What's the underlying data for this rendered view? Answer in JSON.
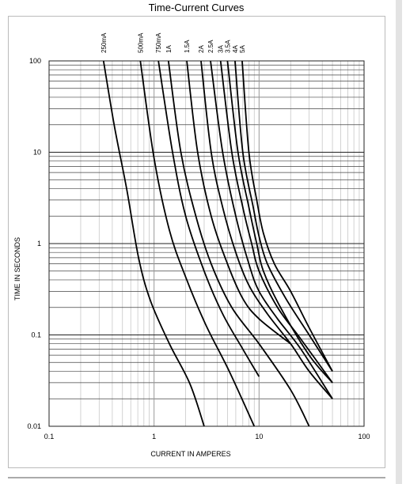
{
  "chart_data": {
    "type": "line",
    "title": "Time-Current Curves",
    "x_label": "CURRENT IN AMPERES",
    "y_label": "TIME IN SECONDS",
    "xscale": "log",
    "yscale": "log",
    "grid": true,
    "minor_grid": true,
    "color": "#000000",
    "xlim": [
      0.1,
      100
    ],
    "xticks": [
      0.1,
      1,
      10,
      100
    ],
    "ylim": [
      0.01,
      100
    ],
    "yticks": [
      0.01,
      0.1,
      1,
      10,
      100
    ],
    "series": [
      {
        "name": "250mA",
        "x": [
          0.33,
          0.42,
          0.55,
          0.71,
          0.92,
          1.4,
          2.2,
          3.0
        ],
        "values": [
          100,
          19,
          3.9,
          0.71,
          0.24,
          0.08,
          0.029,
          0.01
        ]
      },
      {
        "name": "500mA",
        "x": [
          0.74,
          1.0,
          1.4,
          2.0,
          3.1,
          5.2,
          9.0
        ],
        "values": [
          100,
          8.6,
          1.4,
          0.43,
          0.13,
          0.04,
          0.01
        ]
      },
      {
        "name": "750mA",
        "x": [
          1.1,
          1.5,
          2.0,
          3.0,
          4.5,
          7,
          10
        ],
        "values": [
          100,
          10,
          2,
          0.5,
          0.17,
          0.07,
          0.035
        ]
      },
      {
        "name": "1A",
        "x": [
          1.37,
          1.8,
          2.5,
          3.5,
          5.5,
          10,
          20,
          30
        ],
        "values": [
          100,
          10,
          2,
          0.6,
          0.2,
          0.08,
          0.025,
          0.01
        ]
      },
      {
        "name": "1.5A",
        "x": [
          2.05,
          2.6,
          3.5,
          5,
          7,
          10,
          20
        ],
        "values": [
          100,
          10,
          2,
          0.6,
          0.25,
          0.15,
          0.08
        ]
      },
      {
        "name": "2A",
        "x": [
          2.8,
          3.5,
          4.5,
          6,
          8,
          12,
          20,
          30,
          50
        ],
        "values": [
          100,
          10,
          2.5,
          0.8,
          0.35,
          0.17,
          0.08,
          0.04,
          0.02
        ]
      },
      {
        "name": "2.5A",
        "x": [
          3.45,
          4.5,
          6,
          8,
          10,
          15,
          25,
          50
        ],
        "values": [
          100,
          10,
          2,
          0.6,
          0.3,
          0.15,
          0.07,
          0.02
        ]
      },
      {
        "name": "3A",
        "x": [
          4.3,
          5.5,
          7,
          8.5,
          10,
          15,
          25,
          50
        ],
        "values": [
          100,
          10,
          2.5,
          1,
          0.5,
          0.2,
          0.09,
          0.03
        ]
      },
      {
        "name": "3.5A",
        "x": [
          5,
          6.3,
          8,
          9.5,
          11,
          16,
          30,
          50
        ],
        "values": [
          100,
          10,
          2.5,
          1,
          0.5,
          0.2,
          0.06,
          0.03
        ]
      },
      {
        "name": "4A",
        "x": [
          5.9,
          7,
          8.8,
          10,
          12,
          18,
          30,
          50
        ],
        "values": [
          100,
          10,
          2.5,
          1.2,
          0.6,
          0.25,
          0.1,
          0.04
        ]
      },
      {
        "name": "5A",
        "x": [
          6.9,
          8,
          9.5,
          11,
          14,
          20,
          30,
          50
        ],
        "values": [
          100,
          10,
          3,
          1.3,
          0.6,
          0.3,
          0.12,
          0.04
        ]
      }
    ]
  }
}
